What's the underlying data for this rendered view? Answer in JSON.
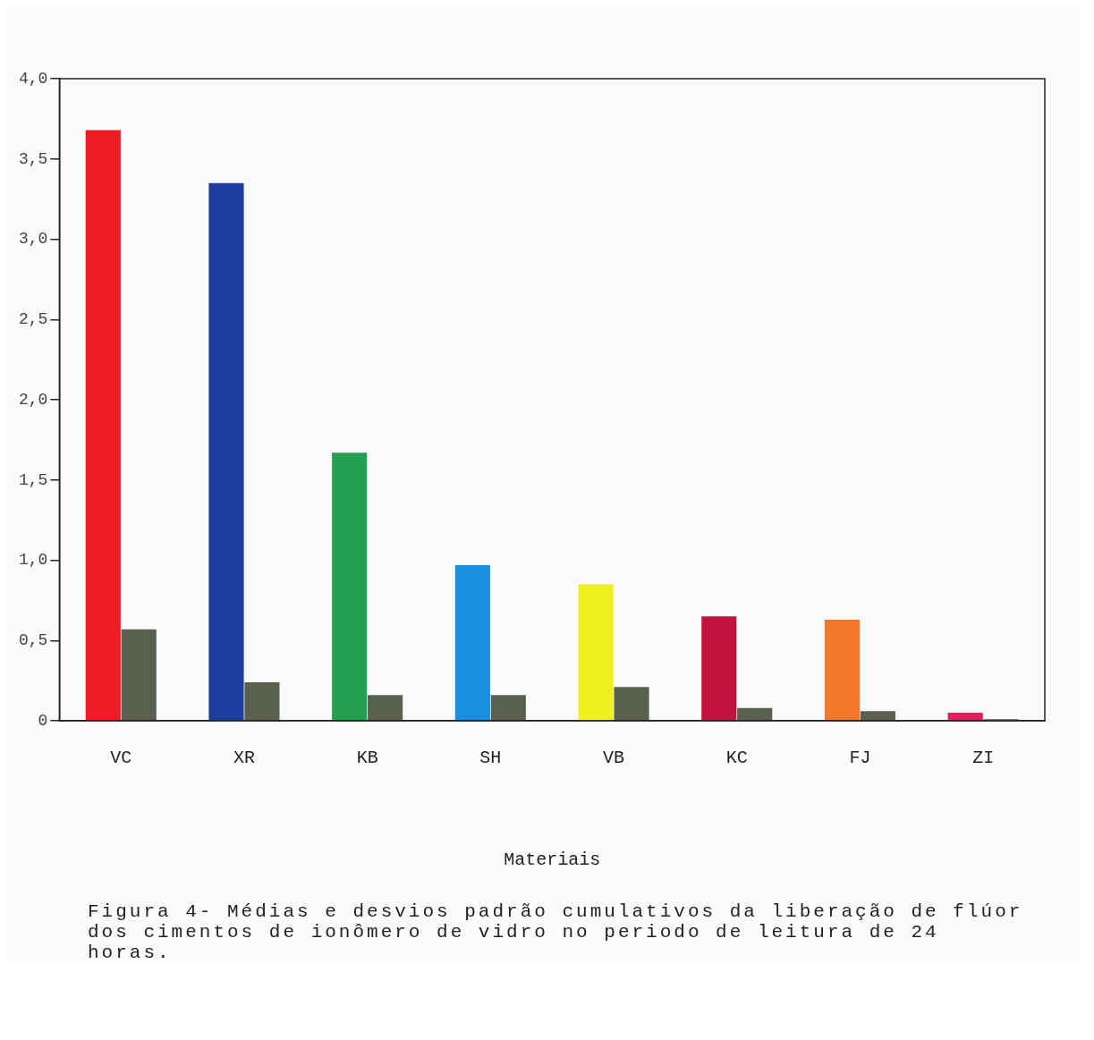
{
  "chart_data": {
    "type": "bar",
    "xlabel": "Materiais",
    "categories": [
      "VC",
      "XR",
      "KB",
      "SH",
      "VB",
      "KC",
      "FJ",
      "ZI"
    ],
    "series": [
      {
        "colors": [
          "#ee1c24",
          "#1e3ca0",
          "#22a050",
          "#1a8ee0",
          "#f0f020",
          "#c0143c",
          "#f07828",
          "#e0205a"
        ],
        "values": [
          3.68,
          3.35,
          1.67,
          0.97,
          0.85,
          0.65,
          0.63,
          0.05
        ]
      },
      {
        "color": "#5a6050",
        "values": [
          0.57,
          0.24,
          0.16,
          0.16,
          0.21,
          0.08,
          0.06,
          0.01
        ]
      }
    ],
    "ylim": [
      0,
      4
    ],
    "yticks": [
      {
        "value": 0,
        "label": "0"
      },
      {
        "value": 0.5,
        "label": "0,5"
      },
      {
        "value": 1,
        "label": "1,0"
      },
      {
        "value": 1.5,
        "label": "1,5"
      },
      {
        "value": 2,
        "label": "2,0"
      },
      {
        "value": 2.5,
        "label": "2,5"
      },
      {
        "value": 3,
        "label": "3,0"
      },
      {
        "value": 3.5,
        "label": "3,5"
      },
      {
        "value": 4,
        "label": "4,0"
      }
    ],
    "grid": false,
    "annotations": [
      "Figura 4- Médias e desvios padrão cumulativos da liberação de flúor dos cimentos de ionômero de vidro no periodo de leitura de 24 horas."
    ]
  }
}
